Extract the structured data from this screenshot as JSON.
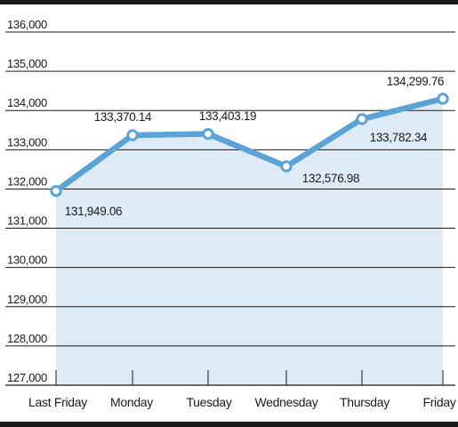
{
  "chart_data": {
    "type": "line",
    "title": "",
    "xlabel": "",
    "ylabel": "",
    "categories": [
      "Last Friday",
      "Monday",
      "Tuesday",
      "Wednesday",
      "Thursday",
      "Friday"
    ],
    "series": [
      {
        "values": [
          131949.06,
          133370.14,
          133403.19,
          132576.98,
          133782.34,
          134299.76
        ],
        "labels": [
          "131,949.06",
          "133,370.14",
          "133,403.19",
          "132,576.98",
          "133,782.34",
          "134,299.76"
        ]
      }
    ],
    "yticks": [
      "127,000",
      "128,000",
      "129,000",
      "130,000",
      "131,000",
      "132,000",
      "133,000",
      "134,000",
      "135,000",
      "136,000"
    ],
    "ylim": [
      127000,
      136000
    ],
    "grid": true,
    "area_fill": true,
    "colors": {
      "line": "#5aa3d8",
      "area": "#deebf7",
      "marker_fill": "#ffffff",
      "grid": "#1a1a1a",
      "frame": "#1a1a1a"
    }
  }
}
